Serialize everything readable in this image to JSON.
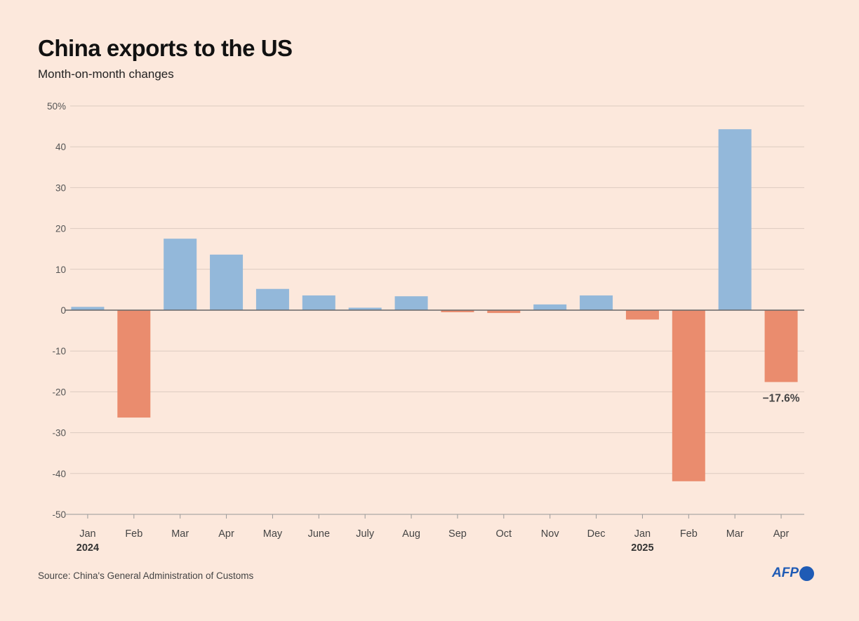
{
  "title": "China exports to the US",
  "subtitle": "Month-on-month changes",
  "source": "Source: China's General Administration of Customs",
  "logo": "AFP",
  "colors": {
    "background": "#fce8dc",
    "positive": "#93b8da",
    "negative": "#ea8c6e",
    "grid": "#dccbc0"
  },
  "chart_data": {
    "type": "bar",
    "title": "China exports to the US",
    "subtitle": "Month-on-month changes",
    "categories": [
      "Jan",
      "Feb",
      "Mar",
      "Apr",
      "May",
      "June",
      "July",
      "Aug",
      "Sep",
      "Oct",
      "Nov",
      "Dec",
      "Jan",
      "Feb",
      "Mar",
      "Apr"
    ],
    "year_labels": [
      {
        "index": 0,
        "label": "2024"
      },
      {
        "index": 12,
        "label": "2025"
      }
    ],
    "values": [
      0.8,
      -26.3,
      17.5,
      13.6,
      5.2,
      3.6,
      0.6,
      3.4,
      -0.5,
      -0.7,
      1.4,
      3.6,
      -2.3,
      -41.9,
      44.3,
      -17.6
    ],
    "yticks": [
      50,
      40,
      30,
      20,
      10,
      0,
      -10,
      -20,
      -30,
      -40,
      -50
    ],
    "ytick_labels": [
      "50%",
      "40",
      "30",
      "20",
      "10",
      "0",
      "-10",
      "-20",
      "-30",
      "-40",
      "-50"
    ],
    "ylim": [
      -50,
      50
    ],
    "grid": true,
    "annotations": [
      {
        "index": 15,
        "label": "−17.6%"
      }
    ]
  }
}
